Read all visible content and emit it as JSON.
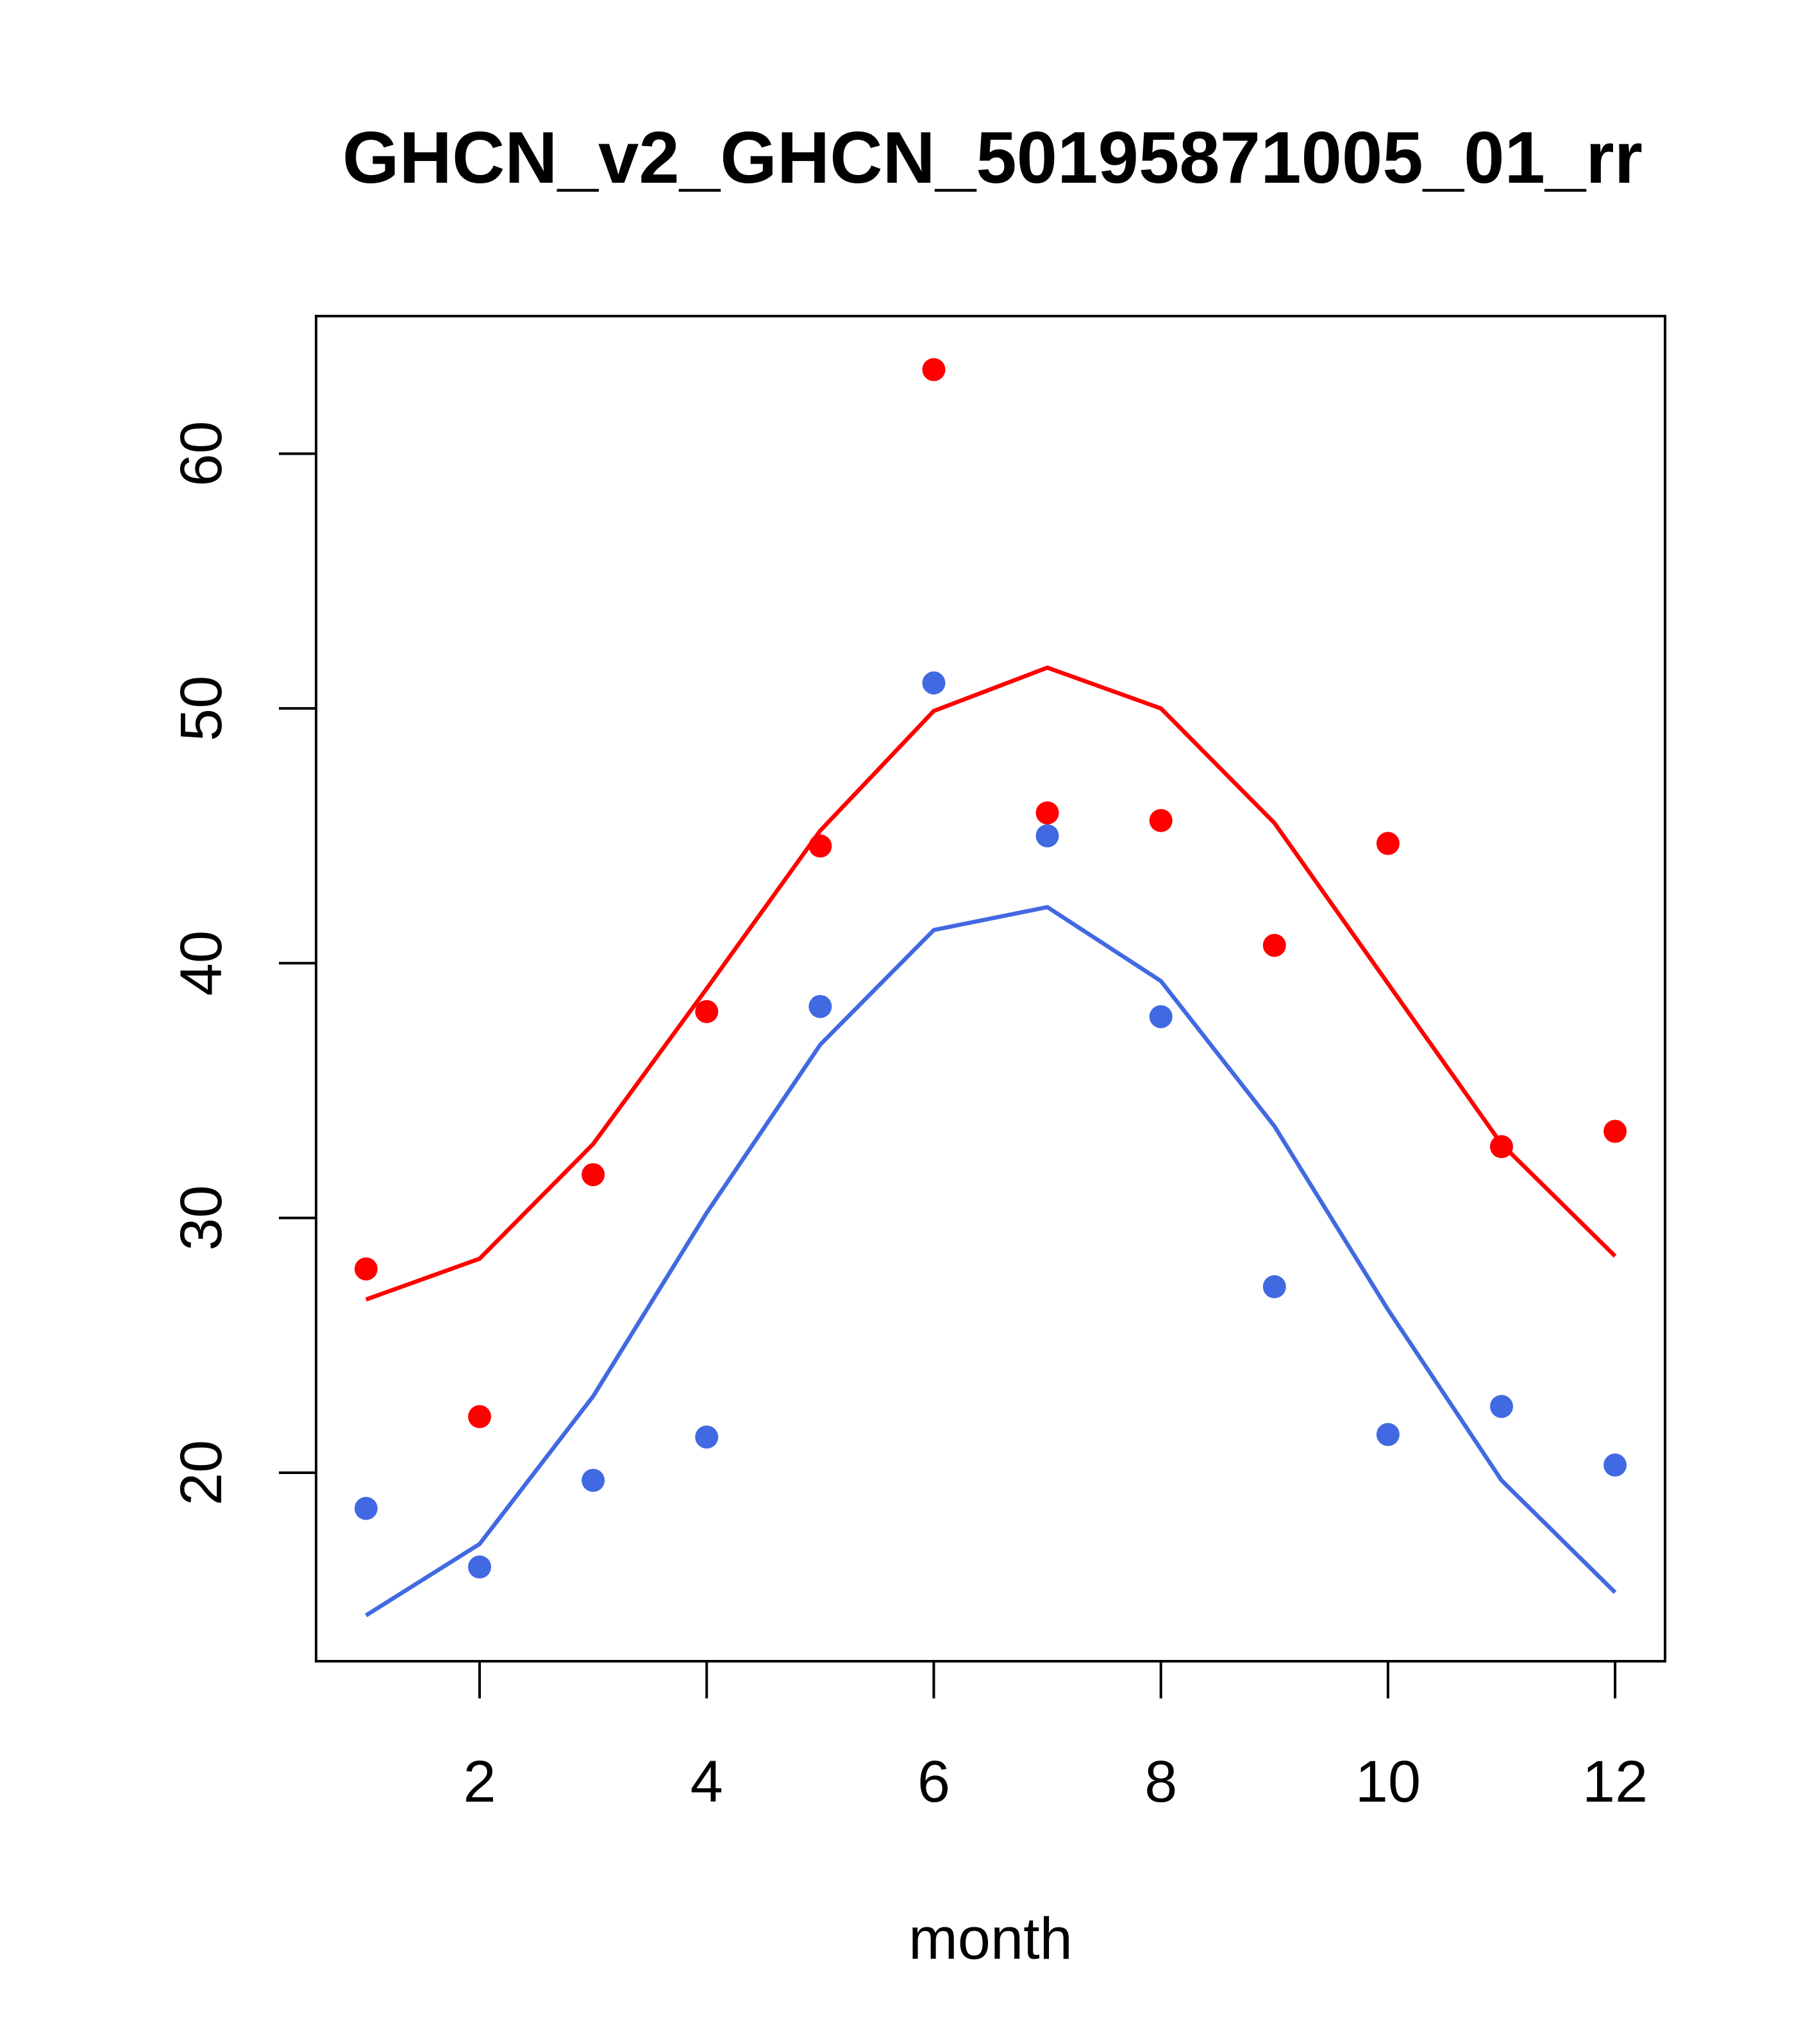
{
  "chart_data": {
    "type": "scatter",
    "title": "GHCN_v2_GHCN_50195871005_01_rr",
    "xlabel": "month",
    "ylabel": "",
    "xlim": [
      0.56,
      12.44
    ],
    "ylim": [
      12.6,
      65.4
    ],
    "x_ticks": [
      2,
      4,
      6,
      8,
      10,
      12
    ],
    "y_ticks": [
      20,
      30,
      40,
      50,
      60
    ],
    "grid": false,
    "legend": "none",
    "x": [
      1,
      2,
      3,
      4,
      5,
      6,
      7,
      8,
      9,
      10,
      11,
      12
    ],
    "series": [
      {
        "color": "#ff0000",
        "kind": "points",
        "values": [
          28.0,
          22.2,
          31.7,
          38.1,
          44.6,
          63.3,
          45.9,
          45.6,
          40.7,
          44.7,
          32.8,
          33.4
        ]
      },
      {
        "color": "#4169e1",
        "kind": "points",
        "values": [
          18.6,
          16.3,
          19.7,
          21.4,
          38.3,
          51.0,
          45.0,
          37.9,
          27.3,
          21.5,
          22.6,
          20.3
        ]
      },
      {
        "color": "#ff0000",
        "kind": "line",
        "values": [
          26.8,
          28.4,
          32.9,
          39.0,
          45.2,
          49.9,
          51.6,
          50.0,
          45.5,
          39.2,
          32.9,
          28.5
        ]
      },
      {
        "color": "#4169e1",
        "kind": "line",
        "values": [
          14.4,
          17.2,
          23.0,
          30.2,
          36.8,
          41.3,
          42.2,
          39.3,
          33.6,
          26.4,
          19.7,
          15.3
        ]
      }
    ]
  }
}
